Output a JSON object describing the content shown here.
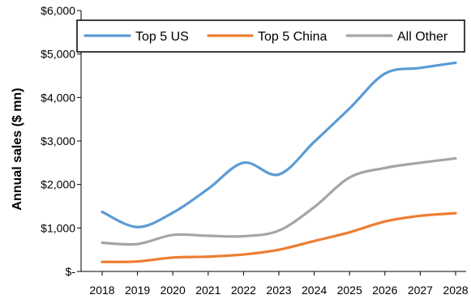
{
  "chart_data": {
    "type": "line",
    "title": "",
    "xlabel": "",
    "ylabel": "Annual sales ($ mn)",
    "x": [
      "2018",
      "2019",
      "2020",
      "2021",
      "2022",
      "2023",
      "2024",
      "2025",
      "2026",
      "2027",
      "2028"
    ],
    "y_ticks": [
      "$-",
      "$1,000",
      "$2,000",
      "$3,000",
      "$4,000",
      "$5,000",
      "$6,000"
    ],
    "ylim": [
      0,
      6000
    ],
    "grid": false,
    "legend_position": "top",
    "series": [
      {
        "name": "Top 5 US",
        "color": "#5b9bd5",
        "values": [
          1370,
          1020,
          1350,
          1900,
          2500,
          2230,
          2980,
          3750,
          4550,
          4680,
          4800
        ]
      },
      {
        "name": "Top 5 China",
        "color": "#ed7d31",
        "values": [
          220,
          230,
          320,
          340,
          390,
          500,
          700,
          900,
          1150,
          1280,
          1340
        ]
      },
      {
        "name": "All Other",
        "color": "#a5a5a5",
        "values": [
          660,
          630,
          840,
          820,
          810,
          940,
          1480,
          2160,
          2380,
          2500,
          2600
        ]
      }
    ]
  }
}
